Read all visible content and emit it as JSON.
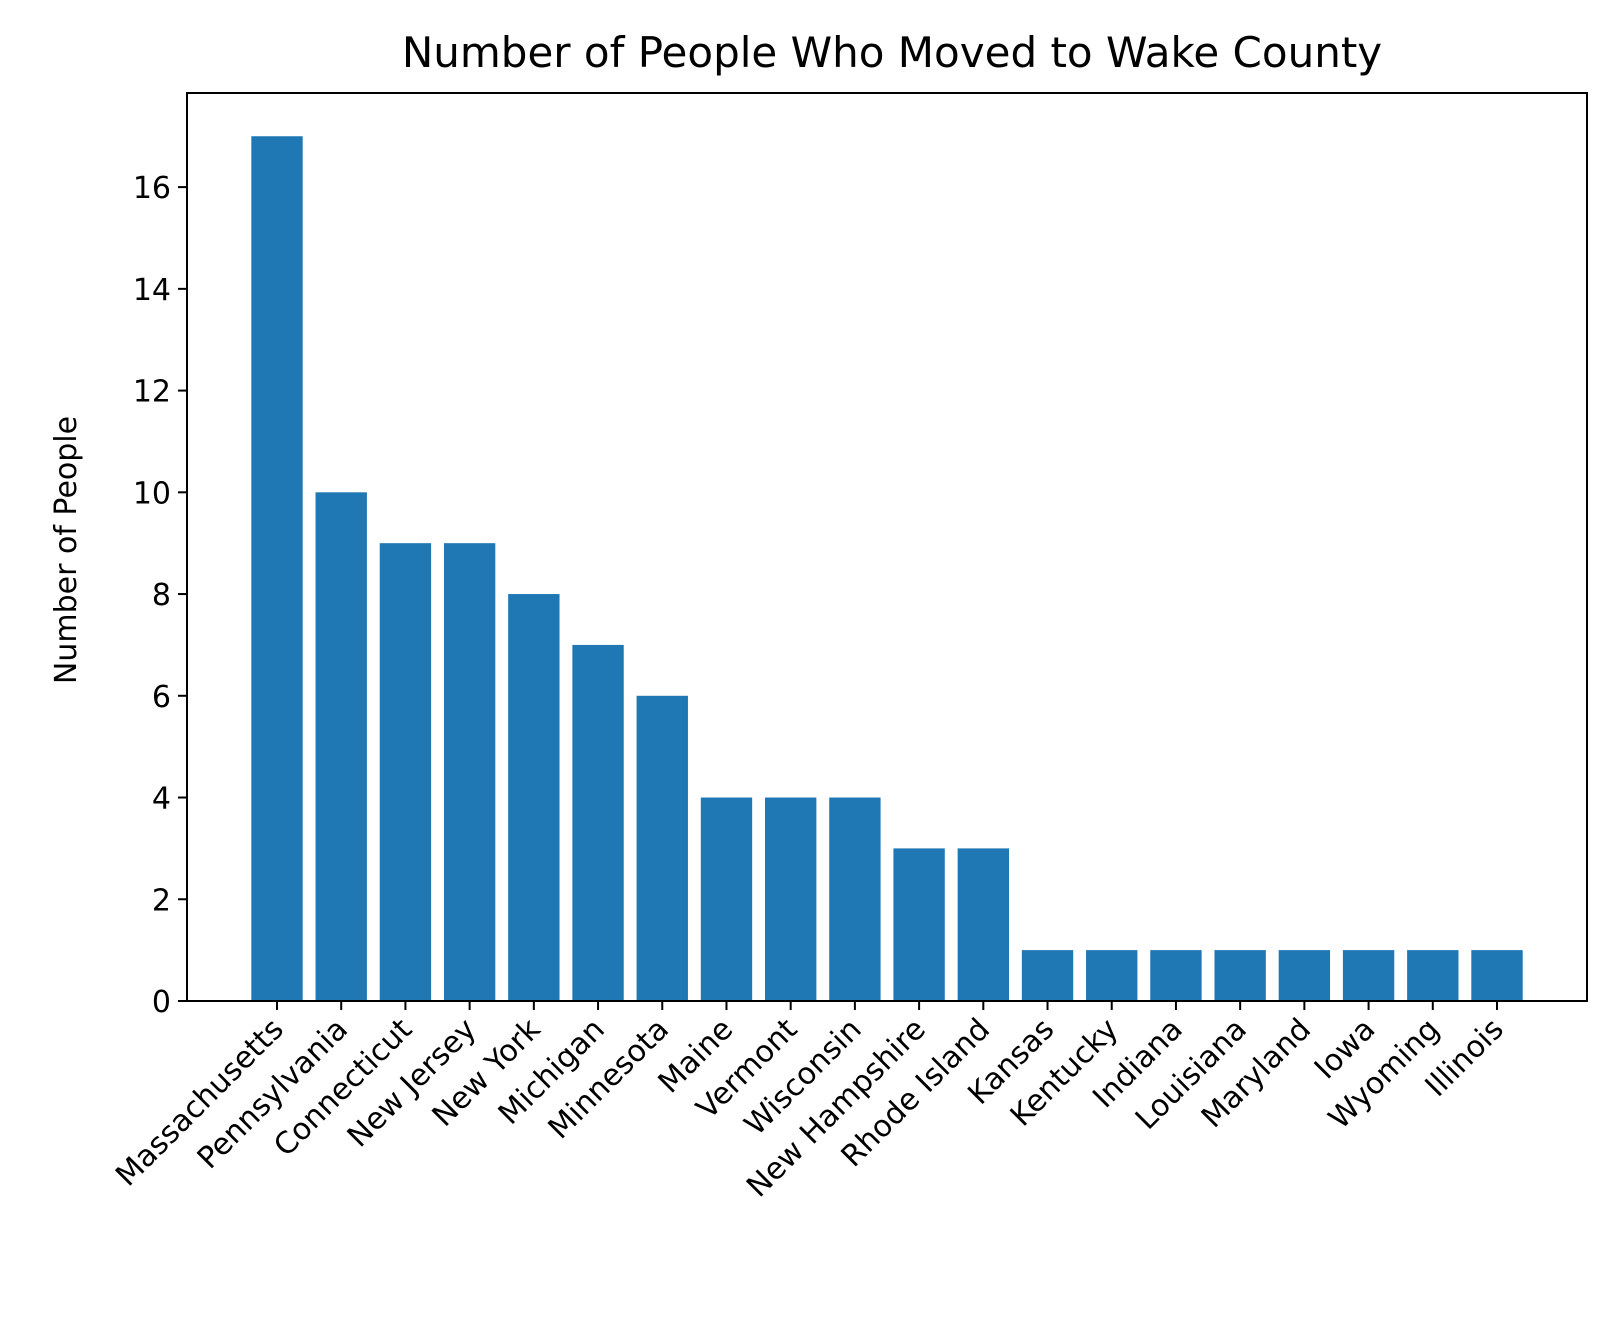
{
  "chart_data": {
    "type": "bar",
    "title": "Number of People Who Moved to Wake County",
    "xlabel": "",
    "ylabel": "Number of People",
    "categories": [
      "Massachusetts",
      "Pennsylvania",
      "Connecticut",
      "New Jersey",
      "New York",
      "Michigan",
      "Minnesota",
      "Maine",
      "Vermont",
      "Wisconsin",
      "New Hampshire",
      "Rhode Island",
      "Kansas",
      "Kentucky",
      "Indiana",
      "Louisiana",
      "Maryland",
      "Iowa",
      "Wyoming",
      "Illinois"
    ],
    "values": [
      17,
      10,
      9,
      9,
      8,
      7,
      6,
      4,
      4,
      4,
      3,
      3,
      1,
      1,
      1,
      1,
      1,
      1,
      1,
      1
    ],
    "ylim": [
      0,
      17.85
    ],
    "yticks": [
      0,
      2,
      4,
      6,
      8,
      10,
      12,
      14,
      16
    ],
    "bar_color": "#1f77b4",
    "grid": false,
    "legend": "none"
  }
}
